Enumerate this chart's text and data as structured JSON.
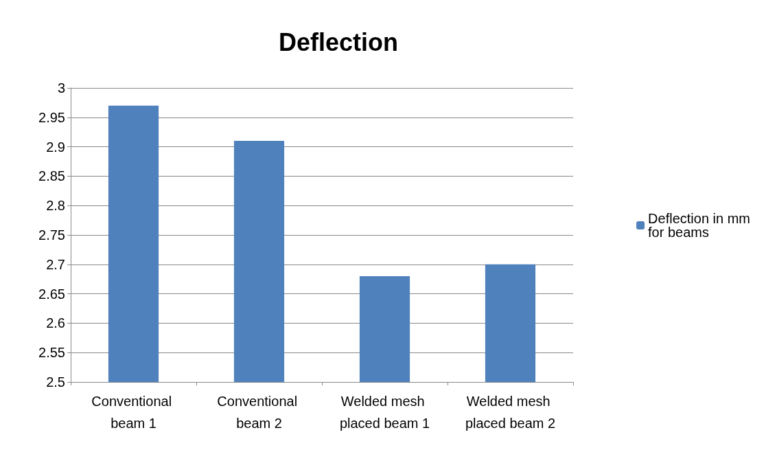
{
  "chart_data": {
    "type": "bar",
    "title": "Deflection",
    "categories": [
      "Conventional beam 1",
      "Conventional beam 2",
      "Welded mesh placed beam 1",
      "Welded mesh placed beam 2"
    ],
    "series": [
      {
        "name": "Deflection in mm for beams",
        "color": "#4f81bd",
        "values": [
          2.97,
          2.91,
          2.68,
          2.7
        ]
      }
    ],
    "ylim": [
      2.5,
      3
    ],
    "yticks": [
      2.5,
      2.55,
      2.6,
      2.65,
      2.7,
      2.75,
      2.8,
      2.85,
      2.9,
      2.95,
      3
    ],
    "grid": "y",
    "legend": "right"
  }
}
